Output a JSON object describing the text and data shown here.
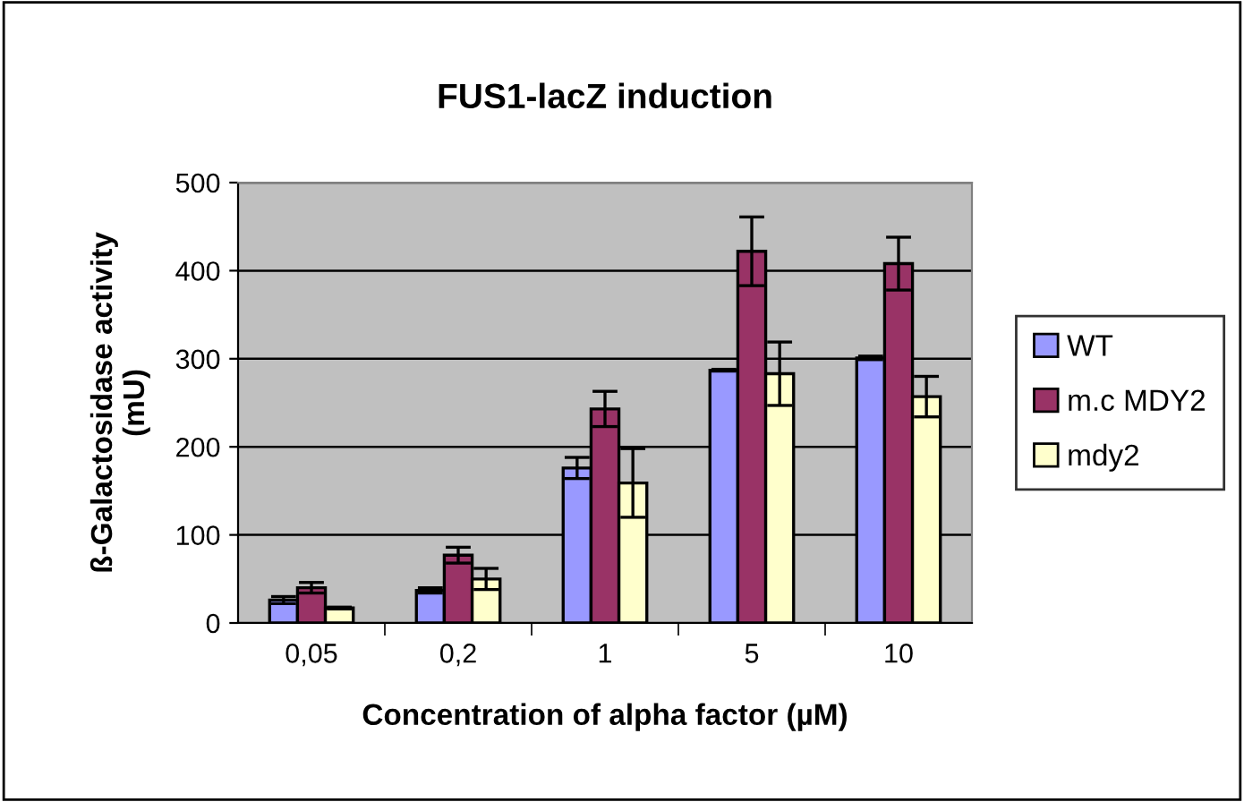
{
  "chart_data": {
    "type": "bar",
    "title": "FUS1-lacZ induction",
    "xlabel": "Concentration of alpha factor (µM)",
    "ylabel": "ß-Galactosidase activity\n(mU)",
    "categories": [
      "0,05",
      "0,2",
      "1",
      "5",
      "10"
    ],
    "series": [
      {
        "name": "WT",
        "color": "#9999ff",
        "values": [
          26,
          37,
          176,
          287,
          301
        ],
        "errors": [
          4,
          3,
          12,
          1,
          2
        ]
      },
      {
        "name": "m.c MDY2",
        "color": "#993366",
        "values": [
          40,
          77,
          243,
          422,
          408
        ],
        "errors": [
          6,
          9,
          20,
          39,
          30
        ]
      },
      {
        "name": "mdy2",
        "color": "#ffffcc",
        "values": [
          17,
          50,
          159,
          283,
          257
        ],
        "errors": [
          1,
          12,
          39,
          36,
          23
        ]
      }
    ],
    "ylim": [
      0,
      500
    ],
    "yticks": [
      0,
      100,
      200,
      300,
      400,
      500
    ],
    "grid": "y",
    "legend": "right"
  }
}
